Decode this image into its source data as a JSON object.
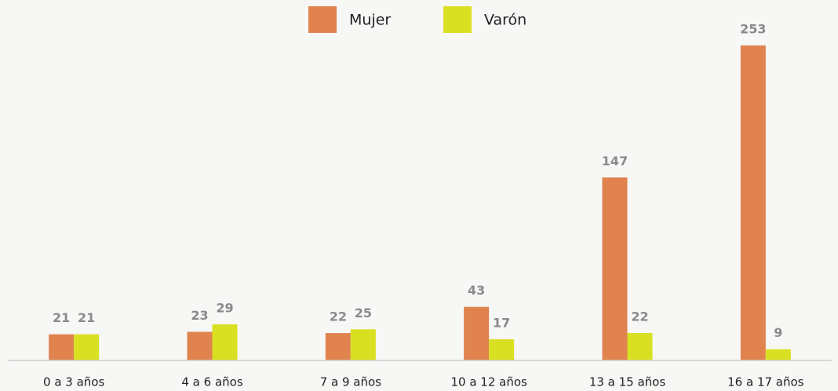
{
  "chart_data": {
    "type": "bar",
    "categories": [
      "0 a 3 años",
      "4 a 6 años",
      "7 a 9 años",
      "10 a 12 años",
      "13 a 15 años",
      "16 a 17 años"
    ],
    "series": [
      {
        "name": "Mujer",
        "color": "#e0834f",
        "values": [
          21,
          23,
          22,
          43,
          147,
          253
        ]
      },
      {
        "name": "Varón",
        "color": "#d9e021",
        "values": [
          21,
          29,
          25,
          17,
          22,
          9
        ]
      }
    ],
    "ylim": [
      0,
      253
    ],
    "legend": "top",
    "grid": false
  }
}
